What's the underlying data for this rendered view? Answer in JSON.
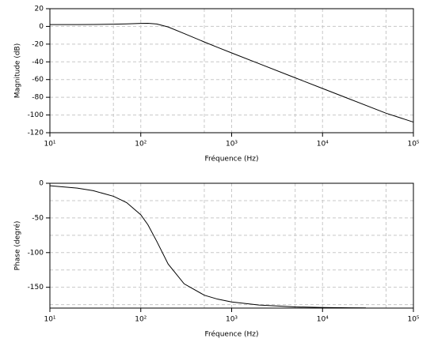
{
  "chart_data": [
    {
      "type": "line",
      "xlabel": "Fréquence (Hz)",
      "ylabel": "Magnitude (dB)",
      "log_x": true,
      "grid": true,
      "color": "#000000",
      "x": [
        10,
        20,
        30,
        50,
        70,
        100,
        120,
        150,
        200,
        300,
        500,
        700,
        1000,
        2000,
        5000,
        10000,
        20000,
        50000,
        100000
      ],
      "values": [
        2.02,
        2.07,
        2.17,
        2.45,
        2.83,
        3.38,
        3.48,
        2.76,
        -0.65,
        -8.05,
        -17.57,
        -23.63,
        -29.94,
        -42.06,
        -58.01,
        -70.06,
        -82.1,
        -98.0,
        -108.0
      ],
      "xlim": [
        10,
        100000
      ],
      "xticks": [
        {
          "value": 10,
          "label": "10¹"
        },
        {
          "value": 100,
          "label": "10²"
        },
        {
          "value": 1000,
          "label": "10³"
        },
        {
          "value": 10000,
          "label": "10⁴"
        },
        {
          "value": 100000,
          "label": "10⁵"
        }
      ],
      "x_minor_grid": [
        50,
        500,
        5000,
        50000
      ],
      "ylim": [
        -120,
        20
      ],
      "yticks": [
        20,
        0,
        -20,
        -40,
        -60,
        -80,
        -100,
        -120
      ],
      "y_minor_grid": []
    },
    {
      "type": "line",
      "xlabel": "Fréquence (Hz)",
      "ylabel": "Phase (degré)",
      "log_x": true,
      "grid": true,
      "color": "#000000",
      "x": [
        10,
        20,
        30,
        50,
        70,
        100,
        120,
        150,
        200,
        300,
        500,
        700,
        1000,
        2000,
        5000,
        10000,
        20000,
        30000
      ],
      "values": [
        -3.5,
        -7.0,
        -10.7,
        -18.7,
        -27.9,
        -45.4,
        -59.9,
        -83.8,
        -116.4,
        -145.0,
        -161.4,
        -167.1,
        -171.2,
        -175.6,
        -178.3,
        -179.1,
        -179.6,
        -179.7
      ],
      "xlim": [
        10,
        100000
      ],
      "xticks": [
        {
          "value": 10,
          "label": "10¹"
        },
        {
          "value": 100,
          "label": "10²"
        },
        {
          "value": 1000,
          "label": "10³"
        },
        {
          "value": 10000,
          "label": "10⁴"
        },
        {
          "value": 100000,
          "label": "10⁵"
        }
      ],
      "x_minor_grid": [
        50,
        500,
        5000,
        50000
      ],
      "ylim": [
        -180,
        0
      ],
      "yticks": [
        0,
        -50,
        -100,
        -150
      ],
      "y_minor_grid": [
        -25,
        -75,
        -125,
        -175
      ]
    }
  ]
}
